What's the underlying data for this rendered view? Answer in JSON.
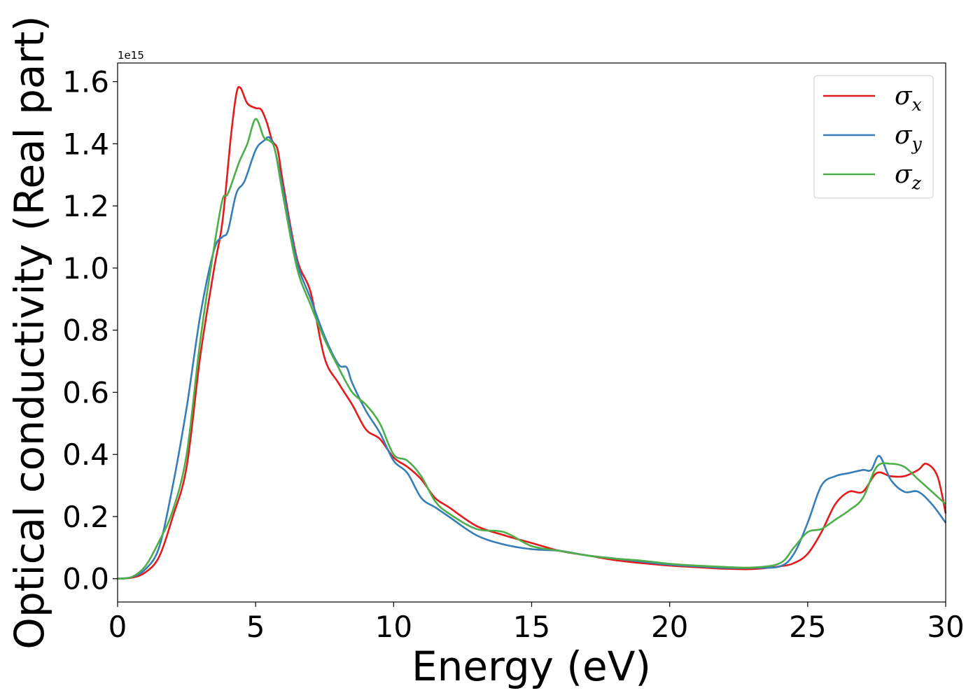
{
  "chart_data": {
    "type": "line",
    "xlabel": "Energy (eV)",
    "ylabel": "Optical conductivity (Real part)",
    "y_offset_label": "1e15",
    "xlim": [
      0,
      30
    ],
    "ylim": [
      -0.075,
      1.66
    ],
    "xticks": [
      0,
      5,
      10,
      15,
      20,
      25,
      30
    ],
    "xtick_labels": [
      "0",
      "5",
      "10",
      "15",
      "20",
      "25",
      "30"
    ],
    "yticks": [
      0.0,
      0.2,
      0.4,
      0.6,
      0.8,
      1.0,
      1.2,
      1.4,
      1.6
    ],
    "ytick_labels": [
      "0.0",
      "0.2",
      "0.4",
      "0.6",
      "0.8",
      "1.0",
      "1.2",
      "1.4",
      "1.6"
    ],
    "grid": false,
    "legend_position": "top-right",
    "series": [
      {
        "name": "σx",
        "legend_symbol": "σ",
        "legend_sub": "x",
        "color": "#e41a1c",
        "points": [
          [
            0,
            0
          ],
          [
            0.5,
            0.003
          ],
          [
            1,
            0.02
          ],
          [
            1.5,
            0.07
          ],
          [
            2,
            0.2
          ],
          [
            2.5,
            0.36
          ],
          [
            3,
            0.72
          ],
          [
            3.5,
            1.0
          ],
          [
            3.8,
            1.15
          ],
          [
            4.1,
            1.42
          ],
          [
            4.3,
            1.56
          ],
          [
            4.45,
            1.58
          ],
          [
            4.7,
            1.53
          ],
          [
            5,
            1.515
          ],
          [
            5.2,
            1.51
          ],
          [
            5.4,
            1.47
          ],
          [
            5.6,
            1.41
          ],
          [
            5.8,
            1.38
          ],
          [
            6,
            1.27
          ],
          [
            6.5,
            1.03
          ],
          [
            7,
            0.92
          ],
          [
            7.5,
            0.71
          ],
          [
            8,
            0.63
          ],
          [
            8.5,
            0.56
          ],
          [
            9,
            0.48
          ],
          [
            9.5,
            0.45
          ],
          [
            10,
            0.39
          ],
          [
            10.5,
            0.36
          ],
          [
            11,
            0.32
          ],
          [
            11.5,
            0.26
          ],
          [
            12,
            0.23
          ],
          [
            13,
            0.17
          ],
          [
            14,
            0.14
          ],
          [
            15,
            0.115
          ],
          [
            16,
            0.09
          ],
          [
            17,
            0.075
          ],
          [
            18,
            0.06
          ],
          [
            19,
            0.05
          ],
          [
            20,
            0.042
          ],
          [
            21,
            0.037
          ],
          [
            22,
            0.032
          ],
          [
            23,
            0.031
          ],
          [
            24,
            0.04
          ],
          [
            24.5,
            0.05
          ],
          [
            25,
            0.08
          ],
          [
            25.5,
            0.15
          ],
          [
            26,
            0.24
          ],
          [
            26.5,
            0.28
          ],
          [
            27,
            0.28
          ],
          [
            27.5,
            0.34
          ],
          [
            28,
            0.33
          ],
          [
            28.5,
            0.33
          ],
          [
            29,
            0.35
          ],
          [
            29.3,
            0.37
          ],
          [
            29.7,
            0.33
          ],
          [
            30,
            0.21
          ]
        ]
      },
      {
        "name": "σy",
        "legend_symbol": "σ",
        "legend_sub": "y",
        "color": "#377eb8",
        "points": [
          [
            0,
            0
          ],
          [
            0.5,
            0.005
          ],
          [
            1,
            0.03
          ],
          [
            1.5,
            0.1
          ],
          [
            2,
            0.3
          ],
          [
            2.5,
            0.55
          ],
          [
            3,
            0.85
          ],
          [
            3.5,
            1.06
          ],
          [
            3.8,
            1.1
          ],
          [
            4,
            1.12
          ],
          [
            4.3,
            1.24
          ],
          [
            4.6,
            1.28
          ],
          [
            5,
            1.38
          ],
          [
            5.3,
            1.41
          ],
          [
            5.5,
            1.42
          ],
          [
            5.7,
            1.38
          ],
          [
            6,
            1.25
          ],
          [
            6.5,
            1.02
          ],
          [
            7,
            0.9
          ],
          [
            7.5,
            0.78
          ],
          [
            8,
            0.69
          ],
          [
            8.3,
            0.68
          ],
          [
            8.5,
            0.63
          ],
          [
            9,
            0.54
          ],
          [
            9.5,
            0.47
          ],
          [
            10,
            0.38
          ],
          [
            10.5,
            0.34
          ],
          [
            11,
            0.26
          ],
          [
            11.5,
            0.23
          ],
          [
            12,
            0.2
          ],
          [
            13,
            0.14
          ],
          [
            14,
            0.11
          ],
          [
            15,
            0.095
          ],
          [
            16,
            0.09
          ],
          [
            17,
            0.075
          ],
          [
            18,
            0.065
          ],
          [
            19,
            0.055
          ],
          [
            20,
            0.045
          ],
          [
            21,
            0.04
          ],
          [
            22,
            0.035
          ],
          [
            23,
            0.035
          ],
          [
            24,
            0.04
          ],
          [
            24.5,
            0.08
          ],
          [
            25,
            0.18
          ],
          [
            25.5,
            0.3
          ],
          [
            26,
            0.33
          ],
          [
            26.5,
            0.34
          ],
          [
            27,
            0.35
          ],
          [
            27.3,
            0.35
          ],
          [
            27.6,
            0.395
          ],
          [
            28,
            0.32
          ],
          [
            28.5,
            0.28
          ],
          [
            29,
            0.28
          ],
          [
            29.5,
            0.24
          ],
          [
            30,
            0.18
          ]
        ]
      },
      {
        "name": "σz",
        "legend_symbol": "σ",
        "legend_sub": "z",
        "color": "#4daf4a",
        "points": [
          [
            0,
            0
          ],
          [
            0.5,
            0.005
          ],
          [
            1,
            0.04
          ],
          [
            1.5,
            0.12
          ],
          [
            2,
            0.22
          ],
          [
            2.5,
            0.4
          ],
          [
            3,
            0.77
          ],
          [
            3.5,
            1.07
          ],
          [
            3.8,
            1.22
          ],
          [
            4,
            1.24
          ],
          [
            4.4,
            1.34
          ],
          [
            4.7,
            1.4
          ],
          [
            5,
            1.48
          ],
          [
            5.3,
            1.42
          ],
          [
            5.5,
            1.41
          ],
          [
            5.7,
            1.38
          ],
          [
            6,
            1.23
          ],
          [
            6.5,
            1.0
          ],
          [
            7,
            0.88
          ],
          [
            7.5,
            0.77
          ],
          [
            8,
            0.68
          ],
          [
            8.5,
            0.6
          ],
          [
            9,
            0.56
          ],
          [
            9.5,
            0.5
          ],
          [
            10,
            0.4
          ],
          [
            10.5,
            0.38
          ],
          [
            11,
            0.33
          ],
          [
            11.5,
            0.25
          ],
          [
            12,
            0.21
          ],
          [
            13,
            0.16
          ],
          [
            14,
            0.15
          ],
          [
            15,
            0.105
          ],
          [
            16,
            0.09
          ],
          [
            17,
            0.075
          ],
          [
            18,
            0.065
          ],
          [
            19,
            0.058
          ],
          [
            20,
            0.048
          ],
          [
            21,
            0.042
          ],
          [
            22,
            0.038
          ],
          [
            23,
            0.036
          ],
          [
            24,
            0.05
          ],
          [
            24.5,
            0.1
          ],
          [
            25,
            0.15
          ],
          [
            25.5,
            0.16
          ],
          [
            26,
            0.19
          ],
          [
            26.5,
            0.22
          ],
          [
            27,
            0.26
          ],
          [
            27.5,
            0.36
          ],
          [
            28,
            0.37
          ],
          [
            28.5,
            0.36
          ],
          [
            29,
            0.32
          ],
          [
            29.5,
            0.28
          ],
          [
            30,
            0.24
          ]
        ]
      }
    ]
  }
}
